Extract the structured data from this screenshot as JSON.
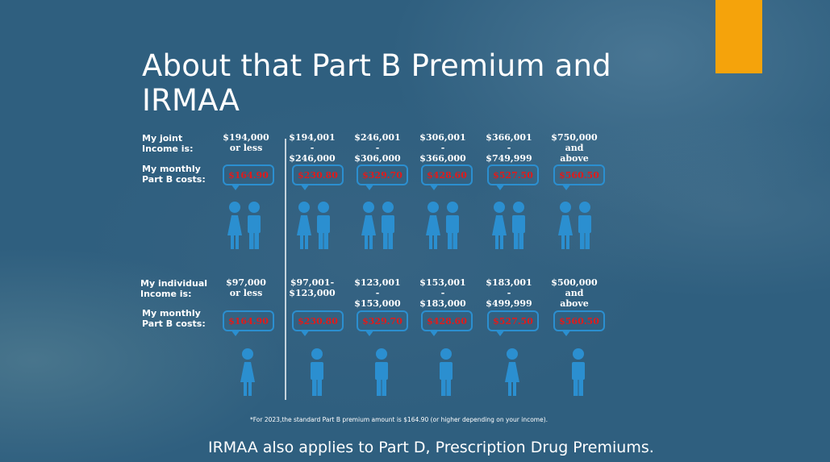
{
  "slide": {
    "title_line1": "About that Part B Premium and",
    "title_line2": "IRMAA",
    "accent_color": "#f5a30b",
    "icon_color": "#2b8fd0",
    "price_color": "#e01b1b"
  },
  "joint": {
    "income_label_1": "My joint",
    "income_label_2": "Income is:",
    "cost_label_1": "My monthly",
    "cost_label_2": "Part B costs:",
    "columns": [
      {
        "lines": [
          "$194,000",
          "or less"
        ],
        "price": "$164.90",
        "figure": "couple-icon"
      },
      {
        "lines": [
          "$194,001",
          "-",
          "$246,000"
        ],
        "price": "$230.80",
        "figure": "couple-icon"
      },
      {
        "lines": [
          "$246,001",
          "-",
          "$306,000"
        ],
        "price": "$329.70",
        "figure": "couple-icon"
      },
      {
        "lines": [
          "$306,001",
          "-",
          "$366,000"
        ],
        "price": "$428.60",
        "figure": "couple-icon"
      },
      {
        "lines": [
          "$366,001",
          "-",
          "$749,999"
        ],
        "price": "$527.50",
        "figure": "couple-icon"
      },
      {
        "lines": [
          "$750,000",
          "and",
          "above"
        ],
        "price": "$560.50",
        "figure": "couple-icon"
      }
    ]
  },
  "individual": {
    "income_label_1": "My individual",
    "income_label_2": "Income is:",
    "cost_label_1": "My monthly",
    "cost_label_2": "Part B costs:",
    "columns": [
      {
        "lines": [
          "$97,000",
          "or less"
        ],
        "price": "$164.90",
        "figure": "woman-icon"
      },
      {
        "lines": [
          "$97,001-",
          "$123,000"
        ],
        "price": "$230.80",
        "figure": "man-icon"
      },
      {
        "lines": [
          "$123,001",
          "-",
          "$153,000"
        ],
        "price": "$329.70",
        "figure": "man-icon"
      },
      {
        "lines": [
          "$153,001",
          "-",
          "$183,000"
        ],
        "price": "$428.60",
        "figure": "man-icon"
      },
      {
        "lines": [
          "$183,001",
          "-",
          "$499,999"
        ],
        "price": "$527.50",
        "figure": "woman-icon"
      },
      {
        "lines": [
          "$500,000",
          "and",
          "above"
        ],
        "price": "$560.50",
        "figure": "man-icon"
      }
    ]
  },
  "footnote": "*For 2023,the standard Part B premium amount is $164.90 (or higher depending on your income).",
  "footer": "IRMAA also applies to Part D, Prescription Drug Premiums."
}
